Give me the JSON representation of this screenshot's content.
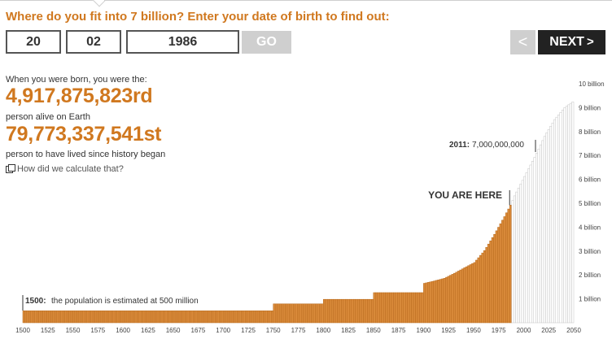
{
  "prompt": "Where do you fit into 7 billion? Enter your date of birth to find out:",
  "form": {
    "day": "20",
    "month": "02",
    "year": "1986",
    "go_label": "GO"
  },
  "nav": {
    "prev_icon": "chevron-left-icon",
    "prev_label": "<",
    "next_label": "NEXT",
    "next_arrow": ">"
  },
  "results": {
    "born_label": "When you were born, you were the:",
    "alive_number": "4,917,875,823rd",
    "alive_label": "person alive on Earth",
    "history_number": "79,773,337,541st",
    "history_label": "person to have lived since history began",
    "how_link": "How did we calculate that?"
  },
  "colors": {
    "accent": "#d0781f",
    "bar_past": "#d98a3a",
    "bar_future": "#e8e8e8",
    "button_dark": "#222222",
    "button_disabled": "#cfcfcf"
  },
  "chart_data": {
    "type": "bar",
    "x_range": [
      1500,
      2050
    ],
    "x_ticks": [
      1500,
      1525,
      1550,
      1575,
      1600,
      1625,
      1650,
      1675,
      1700,
      1725,
      1750,
      1775,
      1800,
      1825,
      1850,
      1875,
      1900,
      1925,
      1950,
      1975,
      2000,
      2025,
      2050
    ],
    "y_range": [
      0,
      10
    ],
    "y_ticks": [
      "1 billion",
      "2 billion",
      "3 billion",
      "4 billion",
      "5 billion",
      "6 billion",
      "7 billion",
      "8 billion",
      "9 billion",
      "10 billion"
    ],
    "population_billions": [
      [
        1500,
        0.5
      ],
      [
        1750,
        0.79
      ],
      [
        1800,
        0.98
      ],
      [
        1850,
        1.26
      ],
      [
        1900,
        1.65
      ],
      [
        1910,
        1.75
      ],
      [
        1920,
        1.86
      ],
      [
        1930,
        2.07
      ],
      [
        1940,
        2.3
      ],
      [
        1950,
        2.52
      ],
      [
        1960,
        3.02
      ],
      [
        1970,
        3.7
      ],
      [
        1980,
        4.44
      ],
      [
        1986,
        4.92
      ],
      [
        1990,
        5.31
      ],
      [
        2000,
        6.12
      ],
      [
        2011,
        7.0
      ],
      [
        2020,
        7.8
      ],
      [
        2030,
        8.5
      ],
      [
        2040,
        9.0
      ],
      [
        2050,
        9.3
      ]
    ],
    "birth_year": 1986,
    "annotations": {
      "you_are_here": "YOU ARE HERE",
      "marker_2011_year": "2011:",
      "marker_2011_value": "7,000,000,000",
      "marker_1500_year": "1500:",
      "marker_1500_text": "the population is estimated at 500 million"
    }
  }
}
